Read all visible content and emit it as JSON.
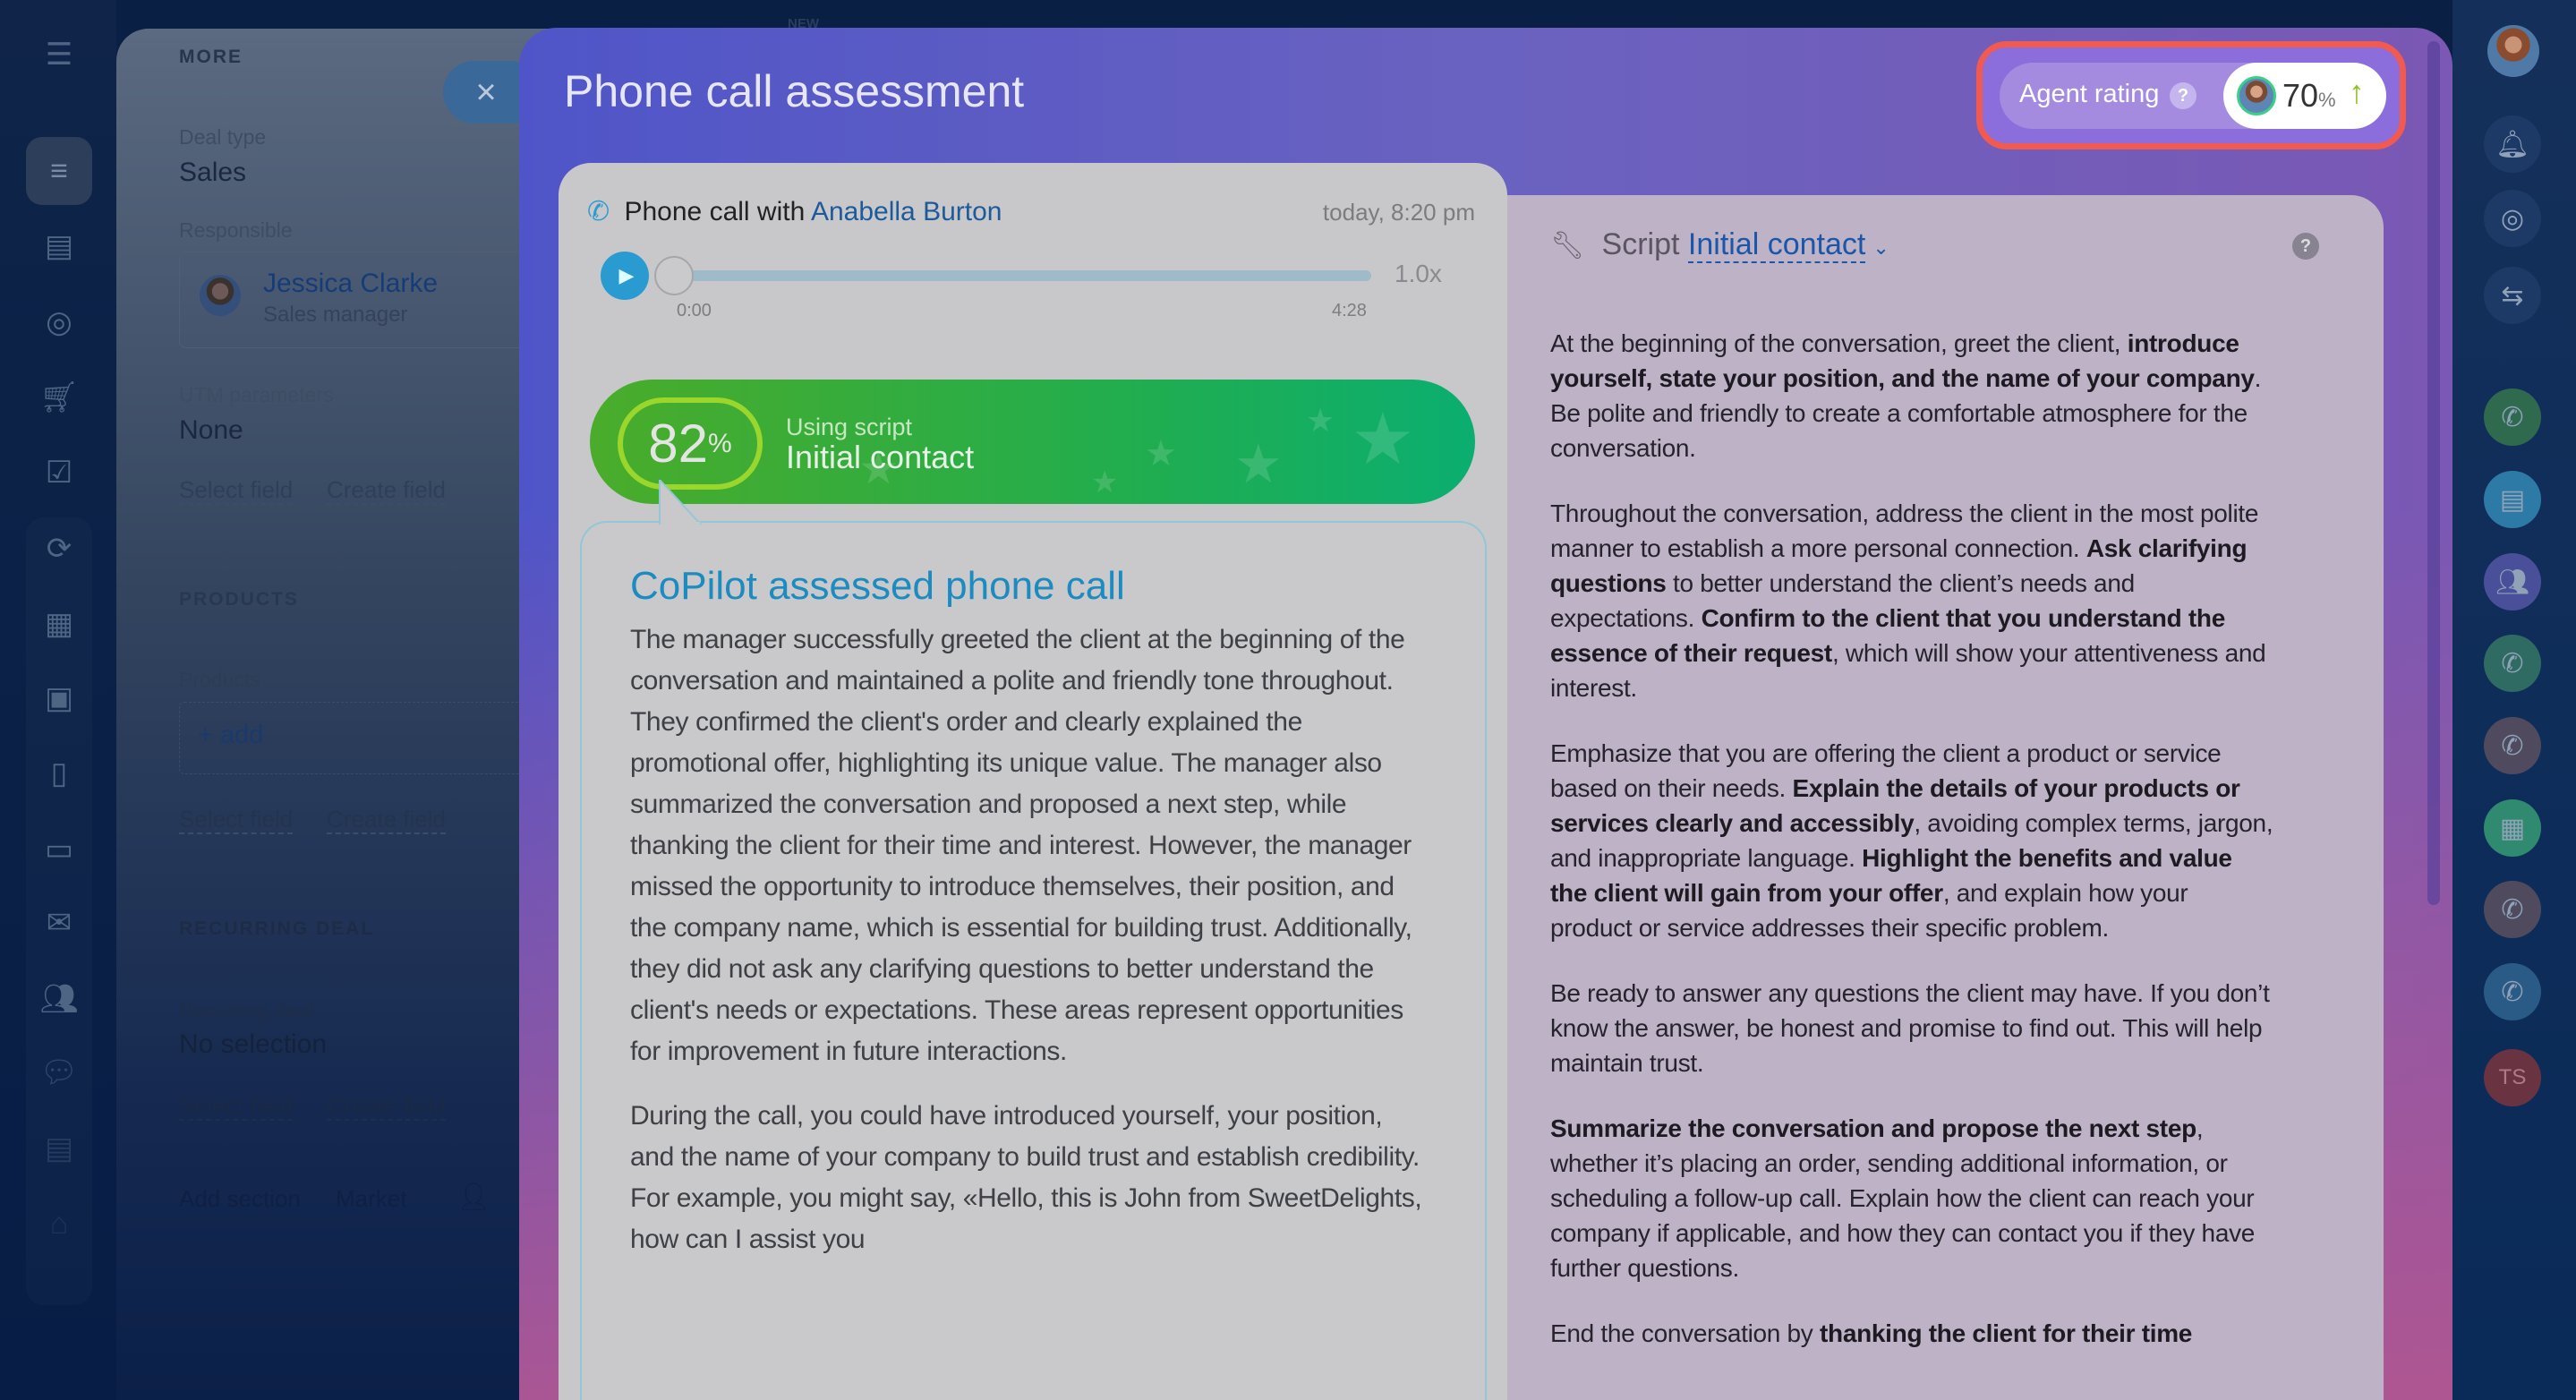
{
  "top": {
    "new_badge": "NEW"
  },
  "leftnav": {
    "items": [
      "menu-icon",
      "funnel-icon",
      "store-icon",
      "target-icon",
      "cart-icon",
      "checkbox-icon",
      "workflow-icon",
      "documents-icon",
      "calendar-icon",
      "file-icon",
      "card-icon",
      "mail-icon",
      "contacts-icon",
      "chat-icon",
      "id-card-icon",
      "robot-icon"
    ]
  },
  "deal": {
    "more_header": "MORE",
    "deal_type_label": "Deal type",
    "deal_type_value": "Sales",
    "responsible_label": "Responsible",
    "responsible_name": "Jessica Clarke",
    "responsible_role": "Sales manager",
    "utm_label": "UTM parameters",
    "utm_value": "None",
    "select_field": "Select field",
    "create_field": "Create field",
    "products_header": "PRODUCTS",
    "products_label": "Products",
    "add_product": "+ add",
    "recurring_header": "RECURRING DEAL",
    "recurring_label": "Recurring deal",
    "recurring_value": "No selection",
    "add_section": "Add section",
    "market": "Market",
    "close_symbol": "×"
  },
  "modal": {
    "title": "Phone call assessment",
    "agent_rating": {
      "label": "Agent rating",
      "help": "?",
      "value": "70",
      "unit": "%",
      "trend": "up",
      "trend_symbol": "↑",
      "trend_color": "#8cc21a"
    },
    "call": {
      "prefix": "Phone call with",
      "contact": "Anabella Burton",
      "time": "today, 8:20 pm",
      "player": {
        "current": "0:00",
        "duration": "4:28",
        "speed": "1.0x",
        "progress": 0
      }
    },
    "score": {
      "value": "82",
      "unit": "%",
      "subtitle": "Using script",
      "script": "Initial contact"
    },
    "assessment": {
      "title": "CoPilot assessed phone call",
      "paragraphs": [
        "The manager successfully greeted the client at the beginning of the conversation and maintained a polite and friendly tone throughout. They confirmed the client's order and clearly explained the promotional offer, highlighting its unique value. The manager also summarized the conversation and proposed a next step, while thanking the client for their time and interest. However, the manager missed the opportunity to introduce themselves, their position, and the company name, which is essential for building trust. Additionally, they did not ask any clarifying questions to better understand the client's needs or expectations. These areas represent opportunities for improvement in future interactions.",
        "During the call, you could have introduced yourself, your position, and the name of your company to build trust and establish credibility. For example, you might say, «Hello, this is John from SweetDelights, how can I assist you"
      ]
    },
    "script": {
      "label": "Script",
      "name": "Initial contact",
      "help": "?",
      "paragraphs": [
        [
          {
            "t": "At the beginning of the conversation, greet the client, "
          },
          {
            "t": "introduce yourself, state your position, and the name of your company",
            "b": true
          },
          {
            "t": ". Be polite and friendly to create a comfortable atmosphere for the conversation."
          }
        ],
        [
          {
            "t": "Throughout the conversation, address the client in the most polite manner to establish a more personal connection. "
          },
          {
            "t": "Ask clarifying questions",
            "b": true
          },
          {
            "t": " to better understand the client’s needs and expectations. "
          },
          {
            "t": "Confirm to the client that you understand the essence of their request",
            "b": true
          },
          {
            "t": ", which will show your attentiveness and interest."
          }
        ],
        [
          {
            "t": "Emphasize that you are offering the client a product or service based on their needs. "
          },
          {
            "t": "Explain the details of your products or services clearly and accessibly",
            "b": true
          },
          {
            "t": ", avoiding complex terms, jargon, and inappropriate language. "
          },
          {
            "t": "Highlight the benefits and value the client will gain from your offer",
            "b": true
          },
          {
            "t": ", and explain how your product or service addresses their specific problem."
          }
        ],
        [
          {
            "t": "Be ready to answer any questions the client may have. If you don’t know the answer, be honest and promise to find out. This will help maintain trust."
          }
        ],
        [
          {
            "t": "Summarize the conversation and propose the next step",
            "b": true
          },
          {
            "t": ", whether it’s placing an order, sending additional information, or scheduling a follow-up call. Explain how the client can reach your company if applicable, and how they can contact you if they have further questions."
          }
        ],
        [
          {
            "t": "End the conversation by "
          },
          {
            "t": "thanking the client for their time",
            "b": true
          }
        ]
      ]
    }
  },
  "rightbar": {
    "items": [
      {
        "icon": "bell-icon",
        "color": "#1d3a66"
      },
      {
        "icon": "copilot-icon",
        "color": "#1d3a66"
      },
      {
        "icon": "chat-transfer-icon",
        "color": "#1d3a66"
      },
      {
        "icon": "phone-icon",
        "color": "#2f6a4f"
      },
      {
        "icon": "messages-icon",
        "color": "#2d7aa6"
      },
      {
        "icon": "group-icon",
        "color": "#4a4f9a"
      },
      {
        "icon": "phone-icon",
        "color": "#2f6a63"
      },
      {
        "icon": "phone-icon",
        "color": "#4f4a5e"
      },
      {
        "icon": "news-icon",
        "color": "#2f8a70"
      },
      {
        "icon": "phone-icon",
        "color": "#4f4a5e"
      },
      {
        "icon": "phone-icon",
        "color": "#2a5a86"
      }
    ],
    "user_initials": "TS",
    "user_color": "#6a3342"
  }
}
